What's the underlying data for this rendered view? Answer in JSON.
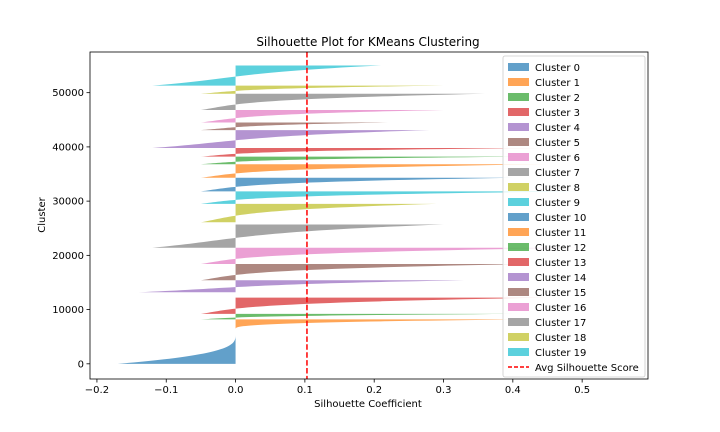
{
  "chart_data": {
    "type": "area",
    "title": "Silhouette Plot for KMeans Clustering",
    "xlabel": "Silhouette Coefficient",
    "ylabel": "Cluster",
    "xlim": [
      -0.21,
      0.595
    ],
    "ylim": [
      -2800,
      57500
    ],
    "xticks": [
      -0.2,
      -0.1,
      0.0,
      0.1,
      0.2,
      0.3,
      0.4,
      0.5
    ],
    "xtick_labels": [
      "−0.2",
      "−0.1",
      "0.0",
      "0.1",
      "0.2",
      "0.3",
      "0.4",
      "0.5"
    ],
    "yticks": [
      0,
      10000,
      20000,
      30000,
      40000,
      50000
    ],
    "ytick_labels": [
      "0",
      "10000",
      "20000",
      "30000",
      "40000",
      "50000"
    ],
    "avg_silhouette_score": 0.103,
    "avg_label": "Avg Silhouette Score",
    "avg_color": "#ff0000",
    "legend_position": "upper right",
    "grid": false,
    "series": [
      {
        "name": "Cluster 0",
        "color": "#1f77b4",
        "y_lower": 0,
        "y_upper": 5400,
        "max_coef": 0.0,
        "min_coef": -0.17
      },
      {
        "name": "Cluster 1",
        "color": "#ff7f0e",
        "y_lower": 6400,
        "y_upper": 8200,
        "max_coef": 0.42,
        "min_coef": 0.0
      },
      {
        "name": "Cluster 2",
        "color": "#2ca02c",
        "y_lower": 8200,
        "y_upper": 9200,
        "max_coef": 0.4,
        "min_coef": -0.05
      },
      {
        "name": "Cluster 3",
        "color": "#d62728",
        "y_lower": 9200,
        "y_upper": 12200,
        "max_coef": 0.45,
        "min_coef": -0.05
      },
      {
        "name": "Cluster 4",
        "color": "#9467bd",
        "y_lower": 13200,
        "y_upper": 15400,
        "max_coef": 0.33,
        "min_coef": -0.14
      },
      {
        "name": "Cluster 5",
        "color": "#8c564b",
        "y_lower": 15400,
        "y_upper": 18400,
        "max_coef": 0.42,
        "min_coef": -0.05
      },
      {
        "name": "Cluster 6",
        "color": "#e377c2",
        "y_lower": 18400,
        "y_upper": 21400,
        "max_coef": 0.5,
        "min_coef": -0.05
      },
      {
        "name": "Cluster 7",
        "color": "#7f7f7f",
        "y_lower": 21400,
        "y_upper": 25700,
        "max_coef": 0.3,
        "min_coef": -0.12
      },
      {
        "name": "Cluster 8",
        "color": "#bcbd22",
        "y_lower": 26100,
        "y_upper": 29500,
        "max_coef": 0.29,
        "min_coef": -0.05
      },
      {
        "name": "Cluster 9",
        "color": "#17becf",
        "y_lower": 29500,
        "y_upper": 31800,
        "max_coef": 0.5,
        "min_coef": -0.05
      },
      {
        "name": "Cluster 10",
        "color": "#1f77b4",
        "y_lower": 31800,
        "y_upper": 34300,
        "max_coef": 0.4,
        "min_coef": -0.05
      },
      {
        "name": "Cluster 11",
        "color": "#ff7f0e",
        "y_lower": 34300,
        "y_upper": 36800,
        "max_coef": 0.45,
        "min_coef": -0.05
      },
      {
        "name": "Cluster 12",
        "color": "#2ca02c",
        "y_lower": 36800,
        "y_upper": 38200,
        "max_coef": 0.42,
        "min_coef": -0.05
      },
      {
        "name": "Cluster 13",
        "color": "#d62728",
        "y_lower": 38200,
        "y_upper": 39800,
        "max_coef": 0.44,
        "min_coef": -0.05
      },
      {
        "name": "Cluster 14",
        "color": "#9467bd",
        "y_lower": 39800,
        "y_upper": 43100,
        "max_coef": 0.28,
        "min_coef": -0.12
      },
      {
        "name": "Cluster 15",
        "color": "#8c564b",
        "y_lower": 43100,
        "y_upper": 44500,
        "max_coef": 0.22,
        "min_coef": -0.05
      },
      {
        "name": "Cluster 16",
        "color": "#e377c2",
        "y_lower": 44500,
        "y_upper": 46800,
        "max_coef": 0.3,
        "min_coef": -0.05
      },
      {
        "name": "Cluster 17",
        "color": "#7f7f7f",
        "y_lower": 46800,
        "y_upper": 49800,
        "max_coef": 0.36,
        "min_coef": -0.05
      },
      {
        "name": "Cluster 18",
        "color": "#bcbd22",
        "y_lower": 49800,
        "y_upper": 51300,
        "max_coef": 0.3,
        "min_coef": -0.05
      },
      {
        "name": "Cluster 19",
        "color": "#17becf",
        "y_lower": 51300,
        "y_upper": 55000,
        "max_coef": 0.21,
        "min_coef": -0.12
      }
    ]
  }
}
